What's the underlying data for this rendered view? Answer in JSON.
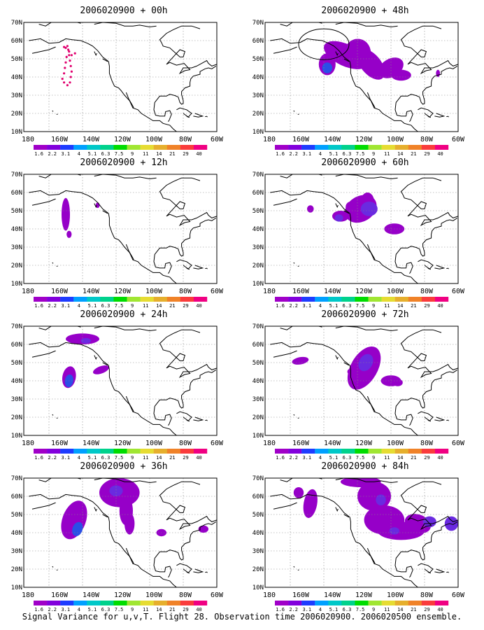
{
  "figure": {
    "footer": "Signal Variance for u,v,T. Flight 28. Observation time 2006020900. 2006020500 ensemble."
  },
  "axes": {
    "lat_labels": [
      "70N",
      "60N",
      "50N",
      "40N",
      "30N",
      "20N",
      "10N"
    ],
    "lon_labels": [
      "180",
      "160W",
      "140W",
      "120W",
      "100W",
      "80W",
      "60W"
    ]
  },
  "colorbar": {
    "labels": [
      "1.6",
      "2.2",
      "3.1",
      "4",
      "5.1",
      "6.3",
      "7.5",
      "9",
      "11",
      "14",
      "21",
      "29",
      "40"
    ],
    "colors": [
      "#a000c8",
      "#8200dc",
      "#1e3cff",
      "#00a0ff",
      "#00c8c8",
      "#00d28c",
      "#00dc00",
      "#a0e632",
      "#e6dc32",
      "#e6af2d",
      "#f08228",
      "#fa3c3c",
      "#f00082"
    ]
  },
  "panels": [
    {
      "title": "2006020900 + 00h"
    },
    {
      "title": "2006020900 + 48h"
    },
    {
      "title": "2006020900 + 12h"
    },
    {
      "title": "2006020900 + 60h"
    },
    {
      "title": "2006020900 + 24h"
    },
    {
      "title": "2006020900 + 72h"
    },
    {
      "title": "2006020900 + 36h"
    },
    {
      "title": "2006020900 + 84h"
    }
  ]
}
